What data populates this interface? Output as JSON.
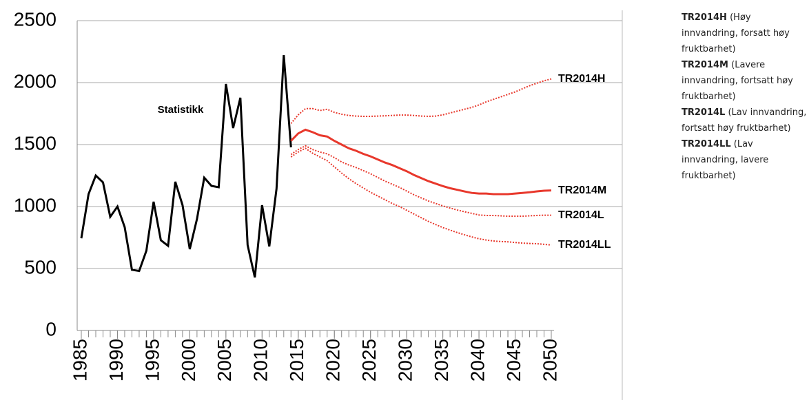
{
  "chart_data": {
    "type": "line",
    "x": [
      1985,
      1986,
      1987,
      1988,
      1989,
      1990,
      1991,
      1992,
      1993,
      1994,
      1995,
      1996,
      1997,
      1998,
      1999,
      2000,
      2001,
      2002,
      2003,
      2004,
      2005,
      2006,
      2007,
      2008,
      2009,
      2010,
      2011,
      2012,
      2013,
      2014,
      2015,
      2016,
      2017,
      2018,
      2019,
      2020,
      2021,
      2022,
      2023,
      2024,
      2025,
      2026,
      2027,
      2028,
      2029,
      2030,
      2031,
      2032,
      2033,
      2034,
      2035,
      2036,
      2037,
      2038,
      2039,
      2040,
      2041,
      2042,
      2043,
      2044,
      2045,
      2046,
      2047,
      2048,
      2049,
      2050
    ],
    "xlim": [
      1985,
      2050
    ],
    "xticks": [
      1985,
      1990,
      1995,
      2000,
      2005,
      2010,
      2015,
      2020,
      2025,
      2030,
      2035,
      2040,
      2045,
      2050
    ],
    "ylim": [
      0,
      2500
    ],
    "yticks": [
      0,
      500,
      1000,
      1500,
      2000,
      2500
    ],
    "grid": true,
    "series": [
      {
        "name": "Statistikk",
        "color": "#000000",
        "style": "solid",
        "values": [
          744,
          1100,
          1250,
          1195,
          917,
          1000,
          833,
          490,
          480,
          644,
          1039,
          728,
          683,
          1200,
          1011,
          656,
          900,
          1233,
          1167,
          1156,
          1989,
          1633,
          1878,
          689,
          428,
          1011,
          678,
          1144,
          2222,
          1478,
          null,
          null,
          null,
          null,
          null,
          null,
          null,
          null,
          null,
          null,
          null,
          null,
          null,
          null,
          null,
          null,
          null,
          null,
          null,
          null,
          null,
          null,
          null,
          null,
          null,
          null,
          null,
          null,
          null,
          null,
          null,
          null,
          null,
          null,
          null,
          null
        ]
      },
      {
        "name": "TR2014H",
        "description": "(Høy innvandring, forsatt høy fruktbarhet)",
        "color": "#e8382c",
        "style": "dotted",
        "values": [
          null,
          null,
          null,
          null,
          null,
          null,
          null,
          null,
          null,
          null,
          null,
          null,
          null,
          null,
          null,
          null,
          null,
          null,
          null,
          null,
          null,
          null,
          null,
          null,
          null,
          null,
          null,
          null,
          null,
          1670,
          1740,
          1790,
          1790,
          1775,
          1785,
          1760,
          1745,
          1735,
          1730,
          1728,
          1728,
          1730,
          1732,
          1735,
          1738,
          1738,
          1735,
          1730,
          1728,
          1730,
          1740,
          1755,
          1770,
          1785,
          1800,
          1820,
          1845,
          1865,
          1885,
          1905,
          1925,
          1950,
          1975,
          1995,
          2015,
          2030
        ]
      },
      {
        "name": "TR2014M",
        "description": "(Lavere innvandring, fortsatt høy fruktbarhet)",
        "color": "#e8382c",
        "style": "solid",
        "values": [
          null,
          null,
          null,
          null,
          null,
          null,
          null,
          null,
          null,
          null,
          null,
          null,
          null,
          null,
          null,
          null,
          null,
          null,
          null,
          null,
          null,
          null,
          null,
          null,
          null,
          null,
          null,
          null,
          null,
          1530,
          1590,
          1620,
          1600,
          1575,
          1565,
          1530,
          1500,
          1470,
          1450,
          1425,
          1405,
          1380,
          1355,
          1335,
          1310,
          1285,
          1255,
          1230,
          1205,
          1185,
          1165,
          1148,
          1135,
          1122,
          1110,
          1105,
          1105,
          1100,
          1100,
          1100,
          1105,
          1110,
          1115,
          1122,
          1128,
          1130
        ]
      },
      {
        "name": "TR2014L",
        "description": " (Lav innvandring, fortsatt høy fruktbarhet)",
        "color": "#e8382c",
        "style": "dotted",
        "values": [
          null,
          null,
          null,
          null,
          null,
          null,
          null,
          null,
          null,
          null,
          null,
          null,
          null,
          null,
          null,
          null,
          null,
          null,
          null,
          null,
          null,
          null,
          null,
          null,
          null,
          null,
          null,
          null,
          null,
          1420,
          1460,
          1490,
          1460,
          1440,
          1425,
          1395,
          1360,
          1335,
          1315,
          1290,
          1265,
          1235,
          1205,
          1180,
          1155,
          1125,
          1095,
          1070,
          1045,
          1025,
          1005,
          988,
          972,
          958,
          945,
          932,
          928,
          928,
          925,
          922,
          922,
          922,
          925,
          928,
          930,
          930
        ]
      },
      {
        "name": "TR2014LL",
        "description": "(Lav innvandring, lavere fruktbarhet)",
        "color": "#e8382c",
        "style": "dotted",
        "values": [
          null,
          null,
          null,
          null,
          null,
          null,
          null,
          null,
          null,
          null,
          null,
          null,
          null,
          null,
          null,
          null,
          null,
          null,
          null,
          null,
          null,
          null,
          null,
          null,
          null,
          null,
          null,
          null,
          null,
          1400,
          1440,
          1470,
          1430,
          1400,
          1370,
          1320,
          1270,
          1225,
          1185,
          1150,
          1115,
          1085,
          1055,
          1025,
          1000,
          970,
          940,
          910,
          880,
          855,
          830,
          810,
          790,
          772,
          755,
          740,
          730,
          722,
          718,
          715,
          710,
          705,
          702,
          700,
          695,
          690
        ]
      }
    ]
  }
}
